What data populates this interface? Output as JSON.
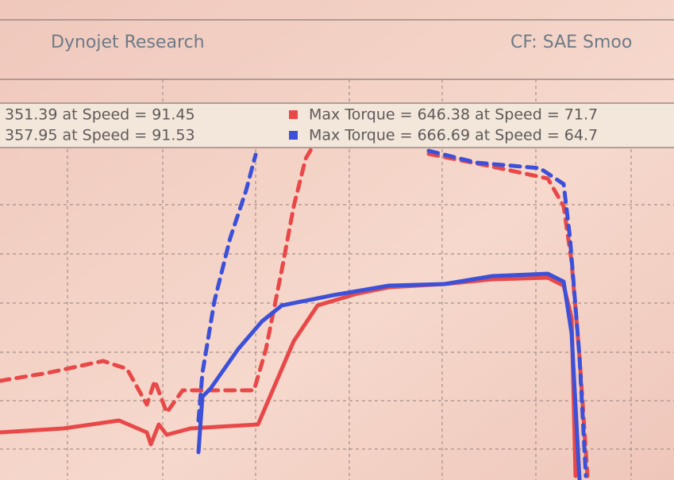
{
  "header": {
    "title": "Dynojet Research",
    "cf": "CF: SAE Smoo"
  },
  "legend": {
    "rows": [
      {
        "power": "351.39 at Speed = 91.45",
        "torque": "Max Torque = 646.38 at Speed = 71.7",
        "color": "#e84848"
      },
      {
        "power": "357.95 at Speed = 91.53",
        "torque": "Max Torque = 666.69 at Speed = 64.7",
        "color": "#3c50d8"
      }
    ]
  }
}
